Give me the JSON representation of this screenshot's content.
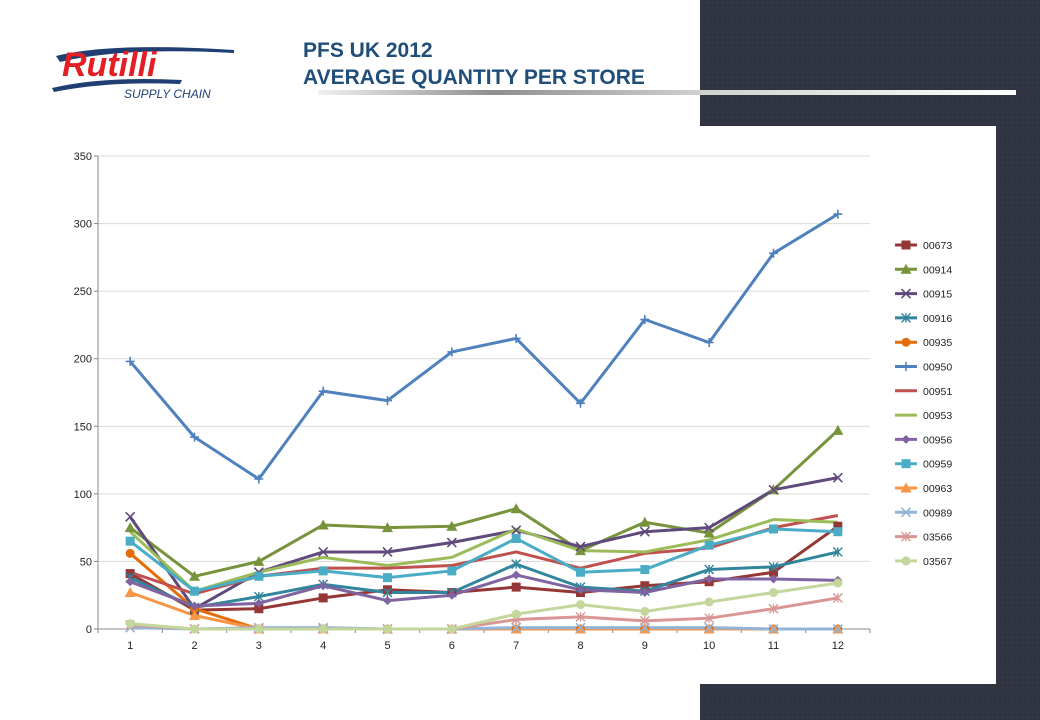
{
  "header": {
    "logo_text": "Rutilli",
    "logo_subtext": "SUPPLY CHAIN",
    "title_line1": "PFS UK 2012",
    "title_line2": "AVERAGE QUANTITY PER STORE"
  },
  "chart_data": {
    "type": "line",
    "title": "",
    "xlabel": "",
    "ylabel": "",
    "x": [
      1,
      2,
      3,
      4,
      5,
      6,
      7,
      8,
      9,
      10,
      11,
      12
    ],
    "ylim": [
      0,
      350
    ],
    "yticks": [
      0,
      50,
      100,
      150,
      200,
      250,
      300,
      350
    ],
    "grid": "horizontal",
    "legend_position": "right",
    "series": [
      {
        "name": "00673",
        "color": "#953735",
        "marker": "square",
        "values": [
          41,
          14,
          15,
          23,
          29,
          27,
          31,
          27,
          32,
          35,
          42,
          76
        ]
      },
      {
        "name": "00914",
        "color": "#77933c",
        "marker": "triangle",
        "values": [
          75,
          39,
          50,
          77,
          75,
          76,
          89,
          58,
          79,
          71,
          103,
          147
        ]
      },
      {
        "name": "00915",
        "color": "#604a7b",
        "marker": "x",
        "values": [
          83,
          15,
          42,
          57,
          57,
          64,
          73,
          61,
          72,
          75,
          103,
          112
        ]
      },
      {
        "name": "00916",
        "color": "#31859c",
        "marker": "star",
        "values": [
          38,
          16,
          24,
          33,
          27,
          27,
          48,
          31,
          28,
          44,
          46,
          57
        ]
      },
      {
        "name": "00935",
        "color": "#e46c0a",
        "marker": "circle",
        "values": [
          56,
          15,
          0,
          0,
          0,
          0,
          0,
          0,
          0,
          0,
          0,
          0
        ]
      },
      {
        "name": "00950",
        "color": "#4f81bd",
        "marker": "plus",
        "values": [
          198,
          142,
          111,
          176,
          169,
          205,
          215,
          167,
          229,
          212,
          278,
          307
        ]
      },
      {
        "name": "00951",
        "color": "#c0504d",
        "marker": "none",
        "values": [
          42,
          26,
          39,
          45,
          45,
          47,
          57,
          45,
          56,
          60,
          75,
          84
        ]
      },
      {
        "name": "00953",
        "color": "#9bbb59",
        "marker": "none",
        "values": [
          72,
          28,
          42,
          53,
          47,
          53,
          74,
          58,
          57,
          66,
          81,
          79
        ]
      },
      {
        "name": "00956",
        "color": "#8064a2",
        "marker": "diamond",
        "values": [
          35,
          17,
          19,
          32,
          21,
          25,
          40,
          29,
          27,
          37,
          37,
          36
        ]
      },
      {
        "name": "00959",
        "color": "#4bacc6",
        "marker": "square",
        "values": [
          65,
          28,
          39,
          43,
          38,
          43,
          67,
          42,
          44,
          62,
          74,
          72
        ]
      },
      {
        "name": "00963",
        "color": "#f79646",
        "marker": "triangle",
        "values": [
          27,
          10,
          0,
          0,
          0,
          0,
          0,
          0,
          0,
          0,
          0,
          0
        ]
      },
      {
        "name": "00989",
        "color": "#95b3d7",
        "marker": "x",
        "values": [
          1,
          0,
          1,
          1,
          0,
          0,
          1,
          1,
          1,
          1,
          0,
          0
        ]
      },
      {
        "name": "03566",
        "color": "#d99694",
        "marker": "star",
        "values": [
          3,
          0,
          0,
          0,
          0,
          0,
          7,
          9,
          6,
          8,
          15,
          23
        ]
      },
      {
        "name": "03567",
        "color": "#c3d69b",
        "marker": "circle",
        "values": [
          4,
          0,
          0,
          0,
          0,
          0,
          11,
          18,
          13,
          20,
          27,
          34
        ]
      }
    ]
  }
}
